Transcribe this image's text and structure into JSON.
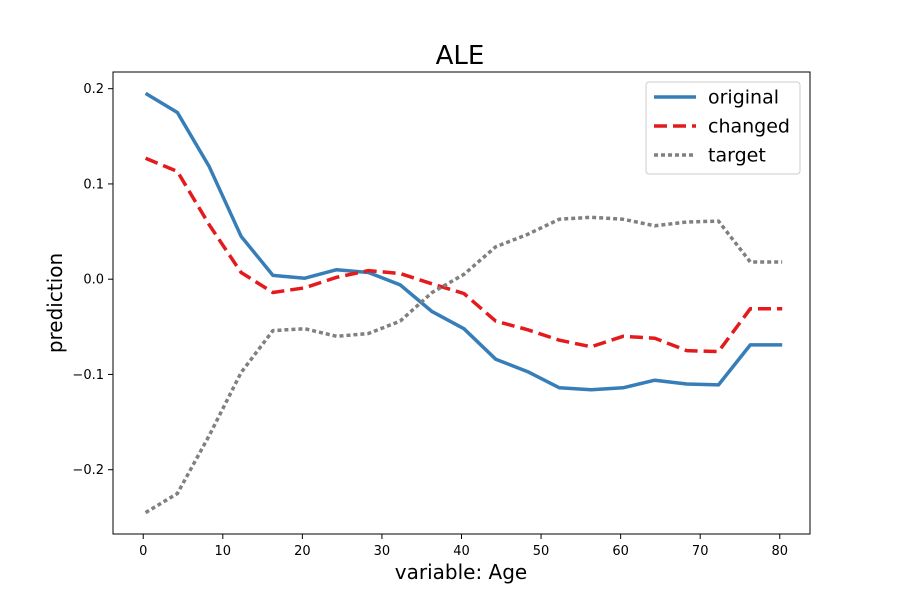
{
  "chart_data": {
    "type": "line",
    "title": "ALE",
    "xlabel": "variable: Age",
    "ylabel": "prediction",
    "xlim": [
      -3.8,
      83.8
    ],
    "ylim": [
      -0.2675,
      0.2175
    ],
    "xticks": [
      0,
      10,
      20,
      30,
      40,
      50,
      60,
      70,
      80
    ],
    "xtick_labels": [
      "0",
      "10",
      "20",
      "30",
      "40",
      "50",
      "60",
      "70",
      "80"
    ],
    "yticks": [
      -0.2,
      -0.1,
      0.0,
      0.1,
      0.2
    ],
    "ytick_labels": [
      "−0.2",
      "−0.1",
      "0.0",
      "0.1",
      "0.2"
    ],
    "grid": false,
    "legend_position": "top-right",
    "x": [
      0.3,
      4.3,
      8.3,
      12.3,
      16.3,
      20.3,
      24.3,
      28.3,
      32.3,
      36.3,
      40.3,
      44.3,
      48.3,
      52.3,
      56.3,
      60.3,
      64.3,
      68.3,
      72.3,
      76.3,
      80.3
    ],
    "series": [
      {
        "name": "original",
        "color": "#377eb8",
        "style": "solid",
        "values": [
          0.195,
          0.175,
          0.118,
          0.045,
          0.004,
          0.001,
          0.01,
          0.007,
          -0.006,
          -0.034,
          -0.052,
          -0.084,
          -0.097,
          -0.114,
          -0.116,
          -0.114,
          -0.106,
          -0.11,
          -0.111,
          -0.069,
          -0.069
        ]
      },
      {
        "name": "changed",
        "color": "#e41a1c",
        "style": "dashed",
        "values": [
          0.127,
          0.113,
          0.057,
          0.007,
          -0.014,
          -0.009,
          0.002,
          0.009,
          0.006,
          -0.005,
          -0.015,
          -0.044,
          -0.053,
          -0.064,
          -0.071,
          -0.06,
          -0.062,
          -0.075,
          -0.076,
          -0.031,
          -0.031
        ]
      },
      {
        "name": "target",
        "color": "#808080",
        "style": "dotted",
        "values": [
          -0.245,
          -0.225,
          -0.164,
          -0.098,
          -0.054,
          -0.052,
          -0.06,
          -0.057,
          -0.044,
          -0.014,
          0.005,
          0.034,
          0.047,
          0.063,
          0.065,
          0.063,
          0.056,
          0.06,
          0.061,
          0.018,
          0.018
        ]
      }
    ]
  }
}
